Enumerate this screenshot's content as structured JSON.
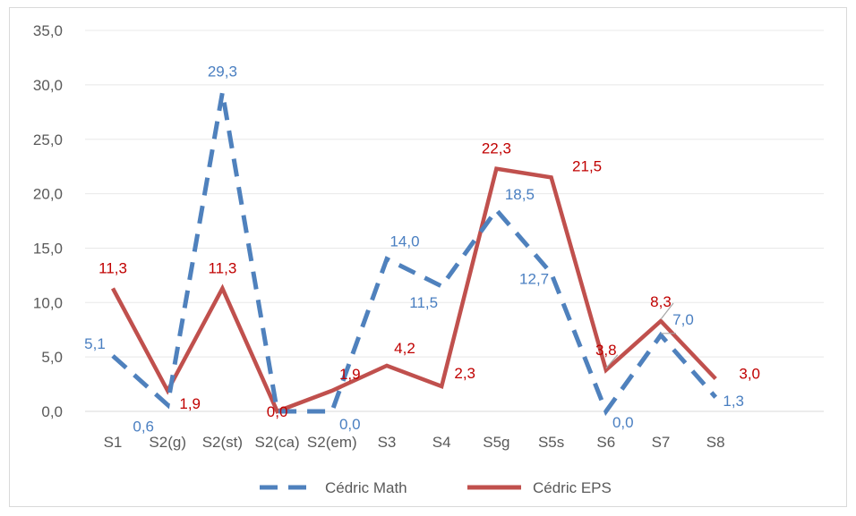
{
  "chart_data": {
    "type": "line",
    "title": "",
    "xlabel": "",
    "ylabel": "",
    "categories": [
      "S1",
      "S2(g)",
      "S2(st)",
      "S2(ca)",
      "S2(em)",
      "S3",
      "S4",
      "S5g",
      "S5s",
      "S6",
      "S7",
      "S8"
    ],
    "ylim": [
      0,
      35
    ],
    "yticks": [
      "0,0",
      "5,0",
      "10,0",
      "15,0",
      "20,0",
      "25,0",
      "30,0",
      "35,0"
    ],
    "grid": "horizontal",
    "legend_position": "bottom",
    "series": [
      {
        "name": "Cédric Math",
        "color": "#4f81bd",
        "style": "dashed",
        "values": [
          5.1,
          0.6,
          29.3,
          0.0,
          0.0,
          14.0,
          11.5,
          18.5,
          12.7,
          0.0,
          7.0,
          1.3
        ],
        "labels": [
          "5,1",
          "0,6",
          "29,3",
          "",
          "0,0",
          "14,0",
          "11,5",
          "18,5",
          "12,7",
          "0,0",
          "7,0",
          "1,3"
        ]
      },
      {
        "name": "Cédric EPS",
        "color": "#c0504d",
        "style": "solid",
        "values": [
          11.3,
          1.9,
          11.3,
          0.0,
          1.9,
          4.2,
          2.3,
          22.3,
          21.5,
          3.8,
          8.3,
          3.0
        ],
        "labels": [
          "11,3",
          "1,9",
          "11,3",
          "0,0",
          "1,9",
          "4,2",
          "2,3",
          "22,3",
          "21,5",
          "3,8",
          "8,3",
          "3,0"
        ]
      }
    ]
  }
}
